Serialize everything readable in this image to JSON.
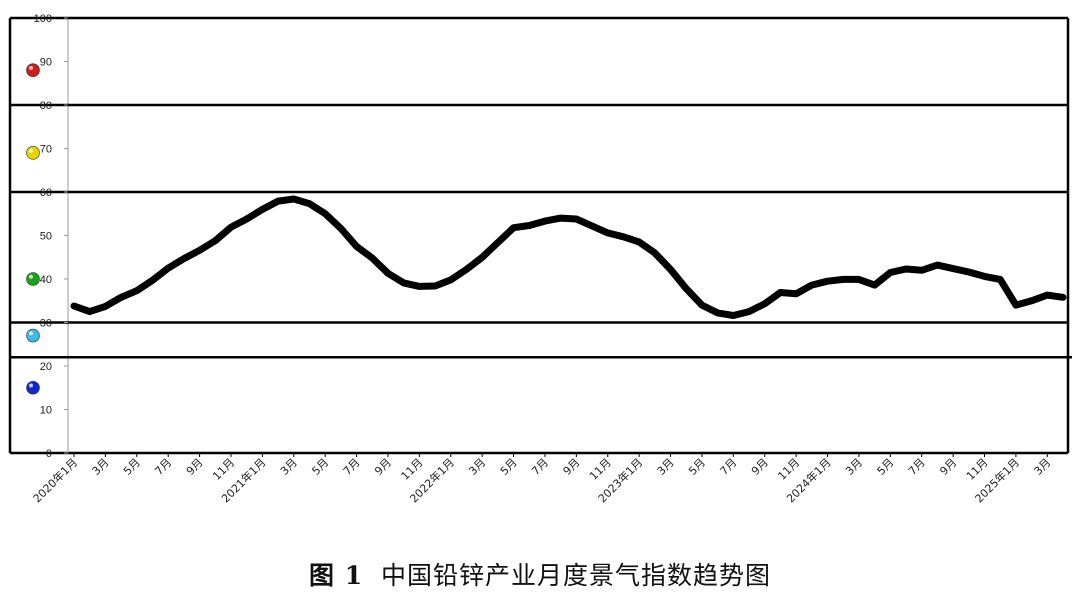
{
  "caption": {
    "figure_label": "图 1",
    "title": "中国铅锌产业月度景气指数趋势图"
  },
  "chart_data": {
    "type": "line",
    "title": "中国铅锌产业月度景气指数趋势图",
    "xlabel": "",
    "ylabel": "",
    "ylim": [
      0,
      100
    ],
    "y_ticks": [
      "0",
      "10",
      "20",
      "30",
      "40",
      "50",
      "60",
      "70",
      "80",
      "90",
      "100"
    ],
    "grid": false,
    "band_lines": [
      100,
      80,
      60,
      30,
      22
    ],
    "signal_lights": [
      {
        "value": 88,
        "color": "#d11a1a"
      },
      {
        "value": 69,
        "color": "#e8d400"
      },
      {
        "value": 40,
        "color": "#1aa31a"
      },
      {
        "value": 27,
        "color": "#3bb8e6"
      },
      {
        "value": 15,
        "color": "#1228c9"
      }
    ],
    "line_color": "#000000",
    "x": [
      "2020年1月",
      "2月",
      "3月",
      "4月",
      "5月",
      "6月",
      "7月",
      "8月",
      "9月",
      "10月",
      "11月",
      "12月",
      "2021年1月",
      "2月",
      "3月",
      "4月",
      "5月",
      "6月",
      "7月",
      "8月",
      "9月",
      "10月",
      "11月",
      "12月",
      "2022年1月",
      "2月",
      "3月",
      "4月",
      "5月",
      "6月",
      "7月",
      "8月",
      "9月",
      "10月",
      "11月",
      "12月",
      "2023年1月",
      "2月",
      "3月",
      "4月",
      "5月",
      "6月",
      "7月",
      "8月",
      "9月",
      "10月",
      "11月",
      "12月",
      "2024年1月",
      "2月",
      "3月",
      "4月",
      "5月",
      "6月",
      "7月",
      "8月",
      "9月",
      "10月",
      "11月",
      "12月",
      "2025年1月",
      "2月",
      "3月",
      "4月"
    ],
    "x_tick_labels": [
      "2020年1月",
      "3月",
      "5月",
      "7月",
      "9月",
      "11月",
      "2021年1月",
      "3月",
      "5月",
      "7月",
      "9月",
      "11月",
      "2022年1月",
      "3月",
      "5月",
      "7月",
      "9月",
      "11月",
      "2023年1月",
      "3月",
      "5月",
      "7月",
      "9月",
      "11月",
      "2024年1月",
      "3月",
      "5月",
      "7月",
      "9月",
      "11月",
      "2025年1月",
      "3月"
    ],
    "series": [
      {
        "values": [
          33.8,
          32.5,
          33.7,
          35.8,
          37.3,
          39.7,
          42.5,
          44.7,
          46.6,
          48.8,
          51.9,
          53.8,
          56.0,
          57.9,
          58.4,
          57.3,
          55.0,
          51.6,
          47.5,
          44.8,
          41.3,
          39.1,
          38.3,
          38.4,
          39.8,
          42.2,
          45.0,
          48.4,
          51.8,
          52.3,
          53.3,
          54.0,
          53.8,
          52.2,
          50.6,
          49.7,
          48.5,
          46.0,
          42.2,
          37.8,
          34.0,
          32.2,
          31.6,
          32.5,
          34.3,
          36.9,
          36.6,
          38.6,
          39.5,
          39.9,
          39.9,
          38.6,
          41.5,
          42.3,
          42.0,
          43.2,
          42.4,
          41.6,
          40.6,
          39.9,
          34.0,
          35.0,
          36.3,
          35.8
        ]
      }
    ]
  }
}
